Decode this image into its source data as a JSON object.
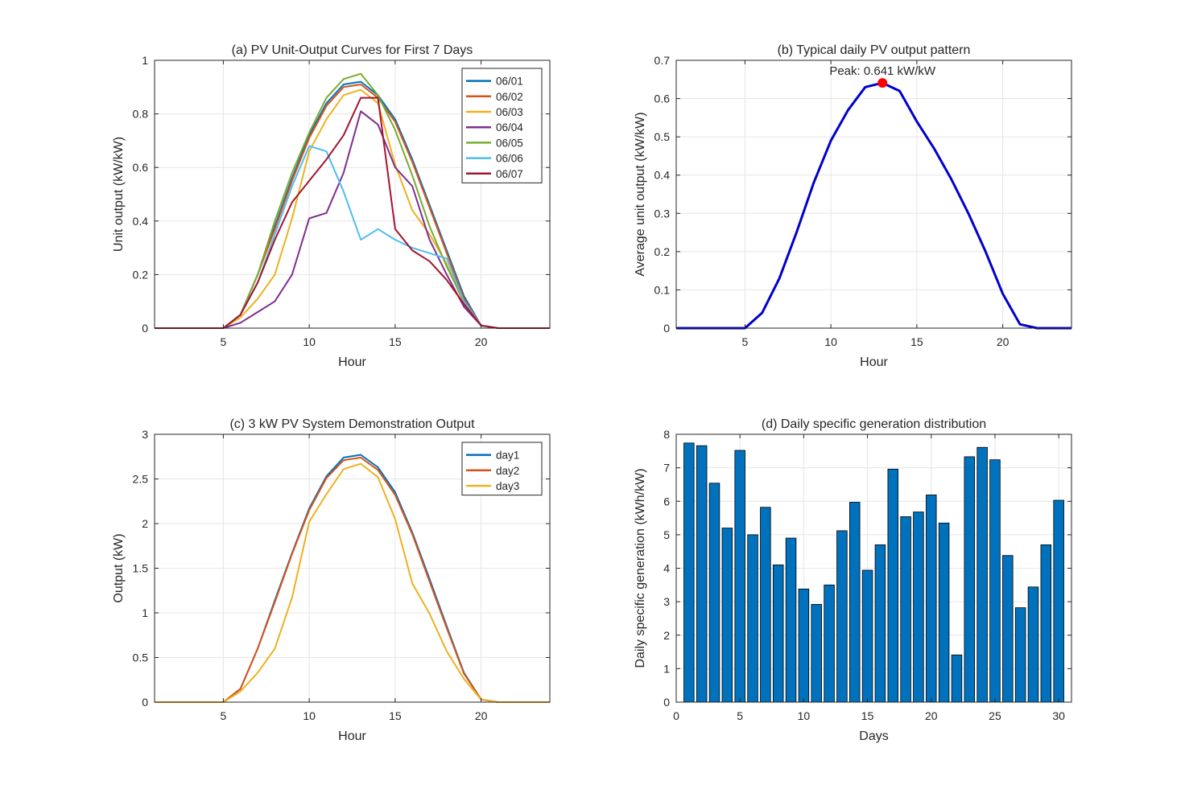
{
  "figure": {
    "panels": [
      "a",
      "b",
      "c",
      "d"
    ]
  },
  "chart_data": [
    {
      "id": "a",
      "type": "line",
      "title": "(a) PV Unit-Output Curves for First 7 Days",
      "xlabel": "Hour",
      "ylabel": "Unit output (kW/kW)",
      "xlim": [
        1,
        24
      ],
      "ylim": [
        0,
        1
      ],
      "xticks": [
        5,
        10,
        15,
        20
      ],
      "yticks": [
        0,
        0.2,
        0.4,
        0.6,
        0.8,
        1
      ],
      "ytick_labels": [
        "0",
        "0.2",
        "0.4",
        "0.6",
        "0.8",
        "1"
      ],
      "grid": true,
      "legend_position": "top-right",
      "x": [
        1,
        2,
        3,
        4,
        5,
        6,
        7,
        8,
        9,
        10,
        11,
        12,
        13,
        14,
        15,
        16,
        17,
        18,
        19,
        20,
        21,
        22,
        23,
        24
      ],
      "series": [
        {
          "name": "06/01",
          "color": "#0072BD",
          "values": [
            0,
            0,
            0,
            0,
            0,
            0.05,
            0.2,
            0.38,
            0.56,
            0.72,
            0.84,
            0.91,
            0.92,
            0.87,
            0.78,
            0.63,
            0.46,
            0.29,
            0.12,
            0.01,
            0,
            0,
            0,
            0
          ]
        },
        {
          "name": "06/02",
          "color": "#D95319",
          "values": [
            0,
            0,
            0,
            0,
            0,
            0.05,
            0.2,
            0.37,
            0.55,
            0.71,
            0.83,
            0.9,
            0.91,
            0.86,
            0.77,
            0.62,
            0.45,
            0.28,
            0.11,
            0.01,
            0,
            0,
            0,
            0
          ]
        },
        {
          "name": "06/03",
          "color": "#EDB120",
          "values": [
            0,
            0,
            0,
            0,
            0,
            0.04,
            0.11,
            0.2,
            0.41,
            0.66,
            0.78,
            0.87,
            0.89,
            0.84,
            0.61,
            0.44,
            0.35,
            0.24,
            0.09,
            0.01,
            0,
            0,
            0,
            0
          ]
        },
        {
          "name": "06/04",
          "color": "#7E2F8E",
          "values": [
            0,
            0,
            0,
            0,
            0,
            0.02,
            0.06,
            0.1,
            0.2,
            0.41,
            0.43,
            0.58,
            0.81,
            0.76,
            0.6,
            0.53,
            0.33,
            0.2,
            0.08,
            0.01,
            0,
            0,
            0,
            0
          ]
        },
        {
          "name": "06/05",
          "color": "#77AC30",
          "values": [
            0,
            0,
            0,
            0,
            0,
            0.05,
            0.2,
            0.4,
            0.58,
            0.73,
            0.86,
            0.93,
            0.95,
            0.87,
            0.74,
            0.57,
            0.38,
            0.23,
            0.1,
            0.01,
            0,
            0,
            0,
            0
          ]
        },
        {
          "name": "06/06",
          "color": "#4DBEEE",
          "values": [
            0,
            0,
            0,
            0,
            0,
            0.05,
            0.17,
            0.35,
            0.53,
            0.68,
            0.66,
            0.51,
            0.33,
            0.37,
            0.33,
            0.3,
            0.28,
            0.26,
            0.1,
            0.01,
            0,
            0,
            0,
            0
          ]
        },
        {
          "name": "06/07",
          "color": "#A2142F",
          "values": [
            0,
            0,
            0,
            0,
            0,
            0.05,
            0.17,
            0.33,
            0.47,
            0.55,
            0.63,
            0.72,
            0.86,
            0.86,
            0.37,
            0.29,
            0.25,
            0.18,
            0.09,
            0.01,
            0,
            0,
            0,
            0
          ]
        }
      ]
    },
    {
      "id": "b",
      "type": "line",
      "title": "(b) Typical daily PV output pattern",
      "xlabel": "Hour",
      "ylabel": "Average unit output (kW/kW)",
      "xlim": [
        1,
        24
      ],
      "ylim": [
        0,
        0.7
      ],
      "xticks": [
        5,
        10,
        15,
        20
      ],
      "yticks": [
        0,
        0.1,
        0.2,
        0.3,
        0.4,
        0.5,
        0.6,
        0.7
      ],
      "ytick_labels": [
        "0",
        "0.1",
        "0.2",
        "0.3",
        "0.4",
        "0.5",
        "0.6",
        "0.7"
      ],
      "grid": true,
      "x": [
        1,
        2,
        3,
        4,
        5,
        6,
        7,
        8,
        9,
        10,
        11,
        12,
        13,
        14,
        15,
        16,
        17,
        18,
        19,
        20,
        21,
        22,
        23,
        24
      ],
      "series": [
        {
          "color": "#0000CD",
          "values": [
            0,
            0,
            0,
            0,
            0,
            0.04,
            0.13,
            0.25,
            0.38,
            0.49,
            0.57,
            0.63,
            0.641,
            0.62,
            0.54,
            0.47,
            0.39,
            0.3,
            0.2,
            0.09,
            0.01,
            0,
            0,
            0
          ]
        }
      ],
      "peak": {
        "x": 13,
        "y": 0.641,
        "color": "#FF0000",
        "label": "Peak: 0.641 kW/kW"
      }
    },
    {
      "id": "c",
      "type": "line",
      "title": "(c) 3 kW PV System Demonstration Output",
      "xlabel": "Hour",
      "ylabel": "Output (kW)",
      "xlim": [
        1,
        24
      ],
      "ylim": [
        0,
        3
      ],
      "xticks": [
        5,
        10,
        15,
        20
      ],
      "yticks": [
        0,
        0.5,
        1,
        1.5,
        2,
        2.5,
        3
      ],
      "ytick_labels": [
        "0",
        "0.5",
        "1",
        "1.5",
        "2",
        "2.5",
        "3"
      ],
      "grid": true,
      "legend_position": "top-right",
      "x": [
        1,
        2,
        3,
        4,
        5,
        6,
        7,
        8,
        9,
        10,
        11,
        12,
        13,
        14,
        15,
        16,
        17,
        18,
        19,
        20,
        21,
        22,
        23,
        24
      ],
      "series": [
        {
          "name": "day1",
          "color": "#0072BD",
          "values": [
            0,
            0,
            0,
            0,
            0,
            0.15,
            0.6,
            1.14,
            1.67,
            2.17,
            2.53,
            2.74,
            2.77,
            2.63,
            2.35,
            1.9,
            1.38,
            0.85,
            0.33,
            0.03,
            0,
            0,
            0,
            0
          ]
        },
        {
          "name": "day2",
          "color": "#D95319",
          "values": [
            0,
            0,
            0,
            0,
            0,
            0.15,
            0.6,
            1.12,
            1.66,
            2.15,
            2.51,
            2.71,
            2.74,
            2.6,
            2.32,
            1.88,
            1.35,
            0.83,
            0.32,
            0.03,
            0,
            0,
            0,
            0
          ]
        },
        {
          "name": "day3",
          "color": "#EDB120",
          "values": [
            0,
            0,
            0,
            0,
            0,
            0.12,
            0.33,
            0.6,
            1.17,
            2.02,
            2.33,
            2.61,
            2.67,
            2.52,
            2.05,
            1.33,
            0.99,
            0.57,
            0.26,
            0.03,
            0,
            0,
            0,
            0
          ]
        }
      ]
    },
    {
      "id": "d",
      "type": "bar",
      "title": "(d) Daily specific generation distribution",
      "xlabel": "Days",
      "ylabel": "Daily specific generation (kWh/kW)",
      "xlim": [
        0,
        31
      ],
      "ylim": [
        0,
        8
      ],
      "xticks": [
        0,
        5,
        10,
        15,
        20,
        25,
        30
      ],
      "yticks": [
        0,
        1,
        2,
        3,
        4,
        5,
        6,
        7,
        8
      ],
      "ytick_labels": [
        "0",
        "1",
        "2",
        "3",
        "4",
        "5",
        "6",
        "7",
        "8"
      ],
      "grid": true,
      "bar_color": "#0072BD",
      "categories": [
        1,
        2,
        3,
        4,
        5,
        6,
        7,
        8,
        9,
        10,
        11,
        12,
        13,
        14,
        15,
        16,
        17,
        18,
        19,
        20,
        21,
        22,
        23,
        24,
        25,
        26,
        27,
        28,
        29,
        30
      ],
      "values": [
        7.74,
        7.66,
        6.54,
        5.2,
        7.52,
        5.0,
        5.82,
        4.1,
        4.9,
        3.38,
        2.92,
        3.5,
        5.12,
        5.97,
        3.94,
        4.7,
        6.96,
        5.54,
        5.68,
        6.19,
        5.35,
        1.41,
        7.33,
        7.61,
        7.24,
        4.38,
        2.82,
        3.44,
        4.7,
        6.03
      ]
    }
  ]
}
